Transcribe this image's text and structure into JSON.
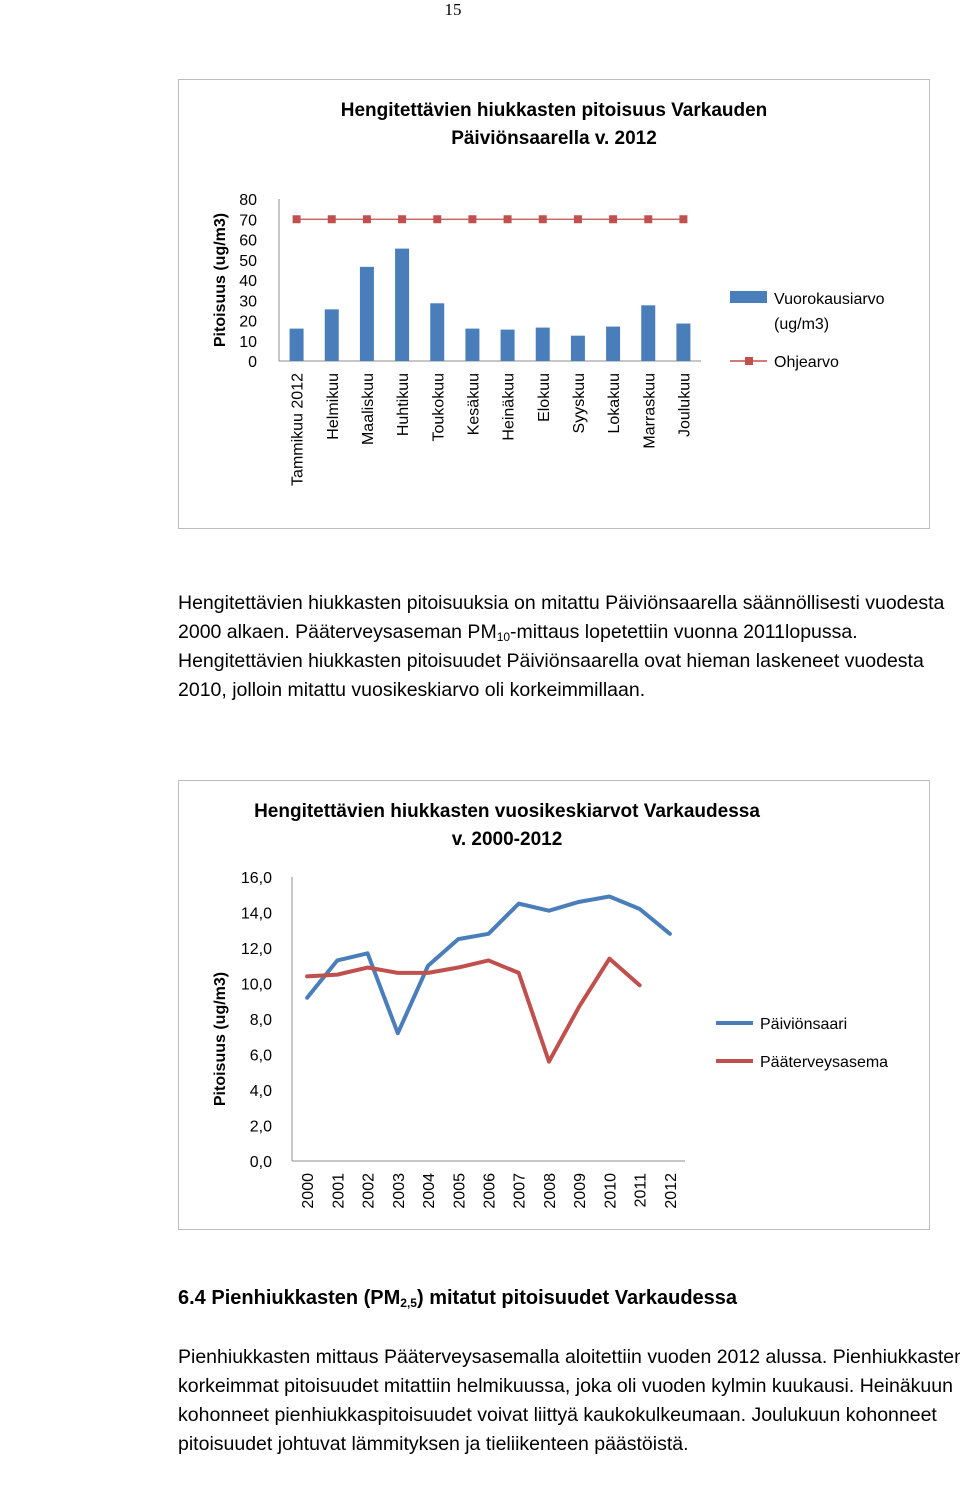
{
  "page_number": "15",
  "paragraph1": {
    "t1": "Hengitettävien hiukkasten pitoisuuksia on mitattu Päiviönsaarella säännöllisesti vuodesta 2000 alkaen. Pääterveysaseman PM",
    "sub": "10",
    "t2": "-mittaus lopetettiin vuonna 2011lopussa. Hengitettävien hiukkasten pitoisuudet Päiviönsaarella ovat hieman laskeneet vuodesta 2010, jolloin mitattu vuosikeskiarvo oli korkeimmillaan."
  },
  "heading": {
    "t1": "6.4 Pienhiukkasten (PM",
    "sub": "2,5",
    "t2": ") mitatut pitoisuudet Varkaudessa"
  },
  "paragraph2": "Pienhiukkasten mittaus Pääterveysasemalla aloitettiin vuoden 2012 alussa. Pienhiukkasten korkeimmat pitoisuudet mitattiin helmikuussa, joka oli vuoden kylmin kuukausi. Heinäkuun kohonneet pienhiukkaspitoisuudet voivat liittyä kaukokulkeumaan. Joulukuun kohonneet pitoisuudet johtuvat lämmityksen ja tieliikenteen päästöistä.",
  "chart_data": [
    {
      "type": "bar",
      "title_lines": [
        "Hengitettävien hiukkasten pitoisuus Varkauden",
        "Päiviönsaarella v. 2012"
      ],
      "ylabel": "Pitoisuus (ug/m3)",
      "ylim": [
        0,
        80
      ],
      "yticks": [
        "0",
        "10",
        "20",
        "30",
        "40",
        "50",
        "60",
        "70",
        "80"
      ],
      "categories": [
        "Tammikuu 2012",
        "Helmikuu",
        "Maaliskuu",
        "Huhtikuu",
        "Toukokuu",
        "Kesäkuu",
        "Heinäkuu",
        "Elokuu",
        "Syyskuu",
        "Lokakuu",
        "Marraskuu",
        "Joulukuu"
      ],
      "series": [
        {
          "name": "Vuorokausiarvo (ug/m3)",
          "legend_lines": [
            "Vuorokausiarvo",
            "(ug/m3)"
          ],
          "kind": "bar",
          "color": "#4a7ebb",
          "values": [
            16,
            25.5,
            46.5,
            55.5,
            28.5,
            16,
            15.5,
            16.5,
            12.5,
            17,
            27.5,
            18.5
          ]
        },
        {
          "name": "Ohjearvo",
          "legend_lines": [
            "Ohjearvo"
          ],
          "kind": "line-marker",
          "color": "#c0504d",
          "values": [
            70,
            70,
            70,
            70,
            70,
            70,
            70,
            70,
            70,
            70,
            70,
            70
          ]
        }
      ],
      "legend_position": "right",
      "grid": false
    },
    {
      "type": "line",
      "title_lines": [
        "Hengitettävien hiukkasten vuosikeskiarvot Varkaudessa",
        "v. 2000-2012"
      ],
      "ylabel": "Pitoisuus (ug/m3)",
      "ylim": [
        0,
        16
      ],
      "yticks": [
        "0,0",
        "2,0",
        "4,0",
        "6,0",
        "8,0",
        "10,0",
        "12,0",
        "14,0",
        "16,0"
      ],
      "categories": [
        "2000",
        "2001",
        "2002",
        "2003",
        "2004",
        "2005",
        "2006",
        "2007",
        "2008",
        "2009",
        "2010",
        "2011",
        "2012"
      ],
      "series": [
        {
          "name": "Päiviönsaari",
          "color": "#4a7ebb",
          "values": [
            9.2,
            11.3,
            11.7,
            7.2,
            11.0,
            12.5,
            12.8,
            14.5,
            14.1,
            14.6,
            14.9,
            14.2,
            12.8
          ]
        },
        {
          "name": "Pääterveysasema",
          "color": "#c0504d",
          "values": [
            10.4,
            10.5,
            10.9,
            10.6,
            10.6,
            10.9,
            11.3,
            10.6,
            5.6,
            8.7,
            11.4,
            9.9,
            null
          ]
        }
      ],
      "legend_position": "right",
      "grid": false
    }
  ]
}
